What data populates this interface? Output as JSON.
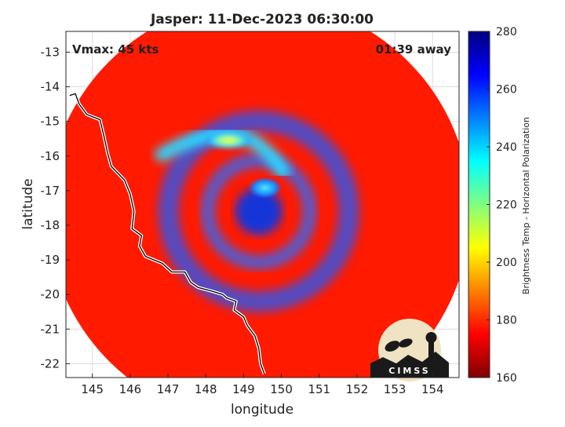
{
  "chart_data": {
    "type": "heatmap",
    "title": "Jasper: 11-Dec-2023 06:30:00",
    "xlabel": "longitude",
    "ylabel": "latitude",
    "xlim": [
      144.3,
      154.7
    ],
    "ylim": [
      -22.4,
      -12.4
    ],
    "xticks": [
      "145",
      "146",
      "147",
      "148",
      "149",
      "150",
      "151",
      "152",
      "153",
      "154"
    ],
    "xtick_values": [
      145,
      146,
      147,
      148,
      149,
      150,
      151,
      152,
      153,
      154
    ],
    "yticks": [
      "-13",
      "-14",
      "-15",
      "-16",
      "-17",
      "-18",
      "-19",
      "-20",
      "-21",
      "-22"
    ],
    "ytick_values": [
      -13,
      -14,
      -15,
      -16,
      -17,
      -18,
      -19,
      -20,
      -21,
      -22
    ],
    "grid": true,
    "annotations": {
      "vmax": "Vmax: 45 kts",
      "time_away": "01:39 away"
    },
    "storm_center": [
      149.4,
      -17.6
    ],
    "swath_center": [
      149.4,
      -17.6
    ],
    "swath_radius_deg": 5.6,
    "rainband_max": [
      148.6,
      -15.55
    ],
    "colorbar": {
      "label": "Brightness Temp - Horizontal Polarization",
      "range": [
        160,
        280
      ],
      "ticks": [
        "160",
        "180",
        "200",
        "220",
        "240",
        "260",
        "280"
      ],
      "tick_values": [
        160,
        180,
        200,
        220,
        240,
        260,
        280
      ],
      "colormap": "jet"
    },
    "background_field_value": 262,
    "coastline": [
      [
        144.4,
        -14.25
      ],
      [
        144.55,
        -14.2
      ],
      [
        144.65,
        -14.5
      ],
      [
        144.85,
        -14.8
      ],
      [
        145.2,
        -14.95
      ],
      [
        145.3,
        -15.4
      ],
      [
        145.4,
        -15.9
      ],
      [
        145.5,
        -16.3
      ],
      [
        145.85,
        -16.7
      ],
      [
        146.0,
        -17.1
      ],
      [
        146.1,
        -17.6
      ],
      [
        146.05,
        -18.1
      ],
      [
        146.3,
        -18.3
      ],
      [
        146.25,
        -18.6
      ],
      [
        146.4,
        -18.9
      ],
      [
        146.85,
        -19.1
      ],
      [
        147.1,
        -19.35
      ],
      [
        147.45,
        -19.35
      ],
      [
        147.6,
        -19.65
      ],
      [
        147.8,
        -19.8
      ],
      [
        148.15,
        -19.9
      ],
      [
        148.45,
        -20.0
      ],
      [
        148.55,
        -20.1
      ],
      [
        148.8,
        -20.2
      ],
      [
        148.75,
        -20.45
      ],
      [
        149.0,
        -20.65
      ],
      [
        149.1,
        -20.9
      ],
      [
        149.3,
        -21.2
      ],
      [
        149.4,
        -21.55
      ],
      [
        149.45,
        -22.0
      ],
      [
        149.55,
        -22.3
      ]
    ],
    "logo": "CIMSS"
  }
}
